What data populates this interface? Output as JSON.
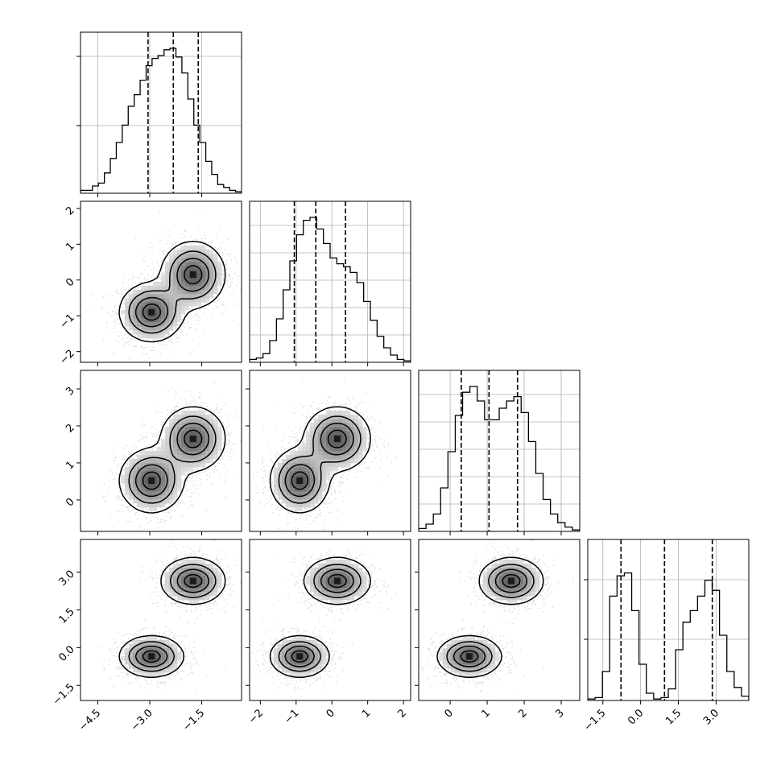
{
  "chart_data": {
    "type": "corner",
    "n_params": 4,
    "grid": true,
    "tick_labels": {
      "x": [
        [
          "-4.5",
          "-3.0",
          "-1.5"
        ],
        [
          "-2",
          "-1",
          "0",
          "1",
          "2"
        ],
        [
          "0",
          "1",
          "2",
          "3"
        ],
        [
          "-1.5",
          "0.0",
          "1.5",
          "3.0"
        ]
      ],
      "y": [
        [],
        [
          "-2",
          "-1",
          "0",
          "1",
          "2"
        ],
        [
          "0",
          "1",
          "2",
          "3"
        ],
        [
          "-1.5",
          "0.0",
          "1.5",
          "3.0"
        ]
      ]
    },
    "params": [
      {
        "range": [
          -5.0,
          -0.35
        ],
        "ticks": [
          -4.5,
          -3.0,
          -1.5
        ],
        "quantiles": [
          -3.05,
          -2.32,
          -1.6
        ],
        "hist": [
          0.02,
          0.02,
          0.05,
          0.07,
          0.14,
          0.24,
          0.35,
          0.47,
          0.6,
          0.68,
          0.78,
          0.88,
          0.93,
          0.95,
          0.99,
          1.0,
          0.94,
          0.83,
          0.65,
          0.47,
          0.35,
          0.22,
          0.13,
          0.06,
          0.04,
          0.02,
          0.01
        ],
        "hist_ticks_frac": [
          0.42,
          0.85
        ]
      },
      {
        "range": [
          -2.3,
          2.2
        ],
        "ticks": [
          -2,
          -1,
          0,
          1,
          2
        ],
        "quantiles": [
          -1.05,
          -0.45,
          0.38
        ],
        "hist": [
          0.02,
          0.03,
          0.06,
          0.15,
          0.3,
          0.5,
          0.7,
          0.88,
          0.98,
          1.0,
          0.92,
          0.82,
          0.72,
          0.68,
          0.66,
          0.62,
          0.55,
          0.42,
          0.29,
          0.18,
          0.1,
          0.05,
          0.02,
          0.01
        ]
      },
      {
        "range": [
          -0.85,
          3.5
        ],
        "ticks": [
          0,
          1,
          2,
          3
        ],
        "quantiles": [
          0.3,
          1.05,
          1.82
        ],
        "hist": [
          0.02,
          0.05,
          0.12,
          0.3,
          0.55,
          0.8,
          0.96,
          1.0,
          0.9,
          0.77,
          0.77,
          0.85,
          0.9,
          0.93,
          0.82,
          0.62,
          0.4,
          0.22,
          0.12,
          0.06,
          0.03,
          0.01
        ]
      },
      {
        "range": [
          -2.1,
          4.3
        ],
        "ticks": [
          -1.5,
          0.0,
          1.5,
          3.0
        ],
        "quantiles": [
          -0.78,
          0.95,
          2.85
        ],
        "hist": [
          0.01,
          0.02,
          0.2,
          0.72,
          0.86,
          0.88,
          0.62,
          0.25,
          0.05,
          0.01,
          0.02,
          0.08,
          0.35,
          0.54,
          0.62,
          0.72,
          0.83,
          0.76,
          0.45,
          0.2,
          0.09,
          0.03
        ],
        "hist_ticks_frac": [
          0.38,
          0.75
        ]
      }
    ],
    "modes": [
      {
        "means": [
          -2.95,
          -0.9,
          0.52,
          -0.35
        ],
        "sd": [
          0.45,
          0.4,
          0.42,
          0.4
        ]
      },
      {
        "means": [
          -1.75,
          0.15,
          1.65,
          2.65
        ],
        "sd": [
          0.45,
          0.45,
          0.42,
          0.45
        ]
      }
    ],
    "contour_levels": [
      0.12,
      0.35,
      0.6,
      0.85
    ]
  }
}
